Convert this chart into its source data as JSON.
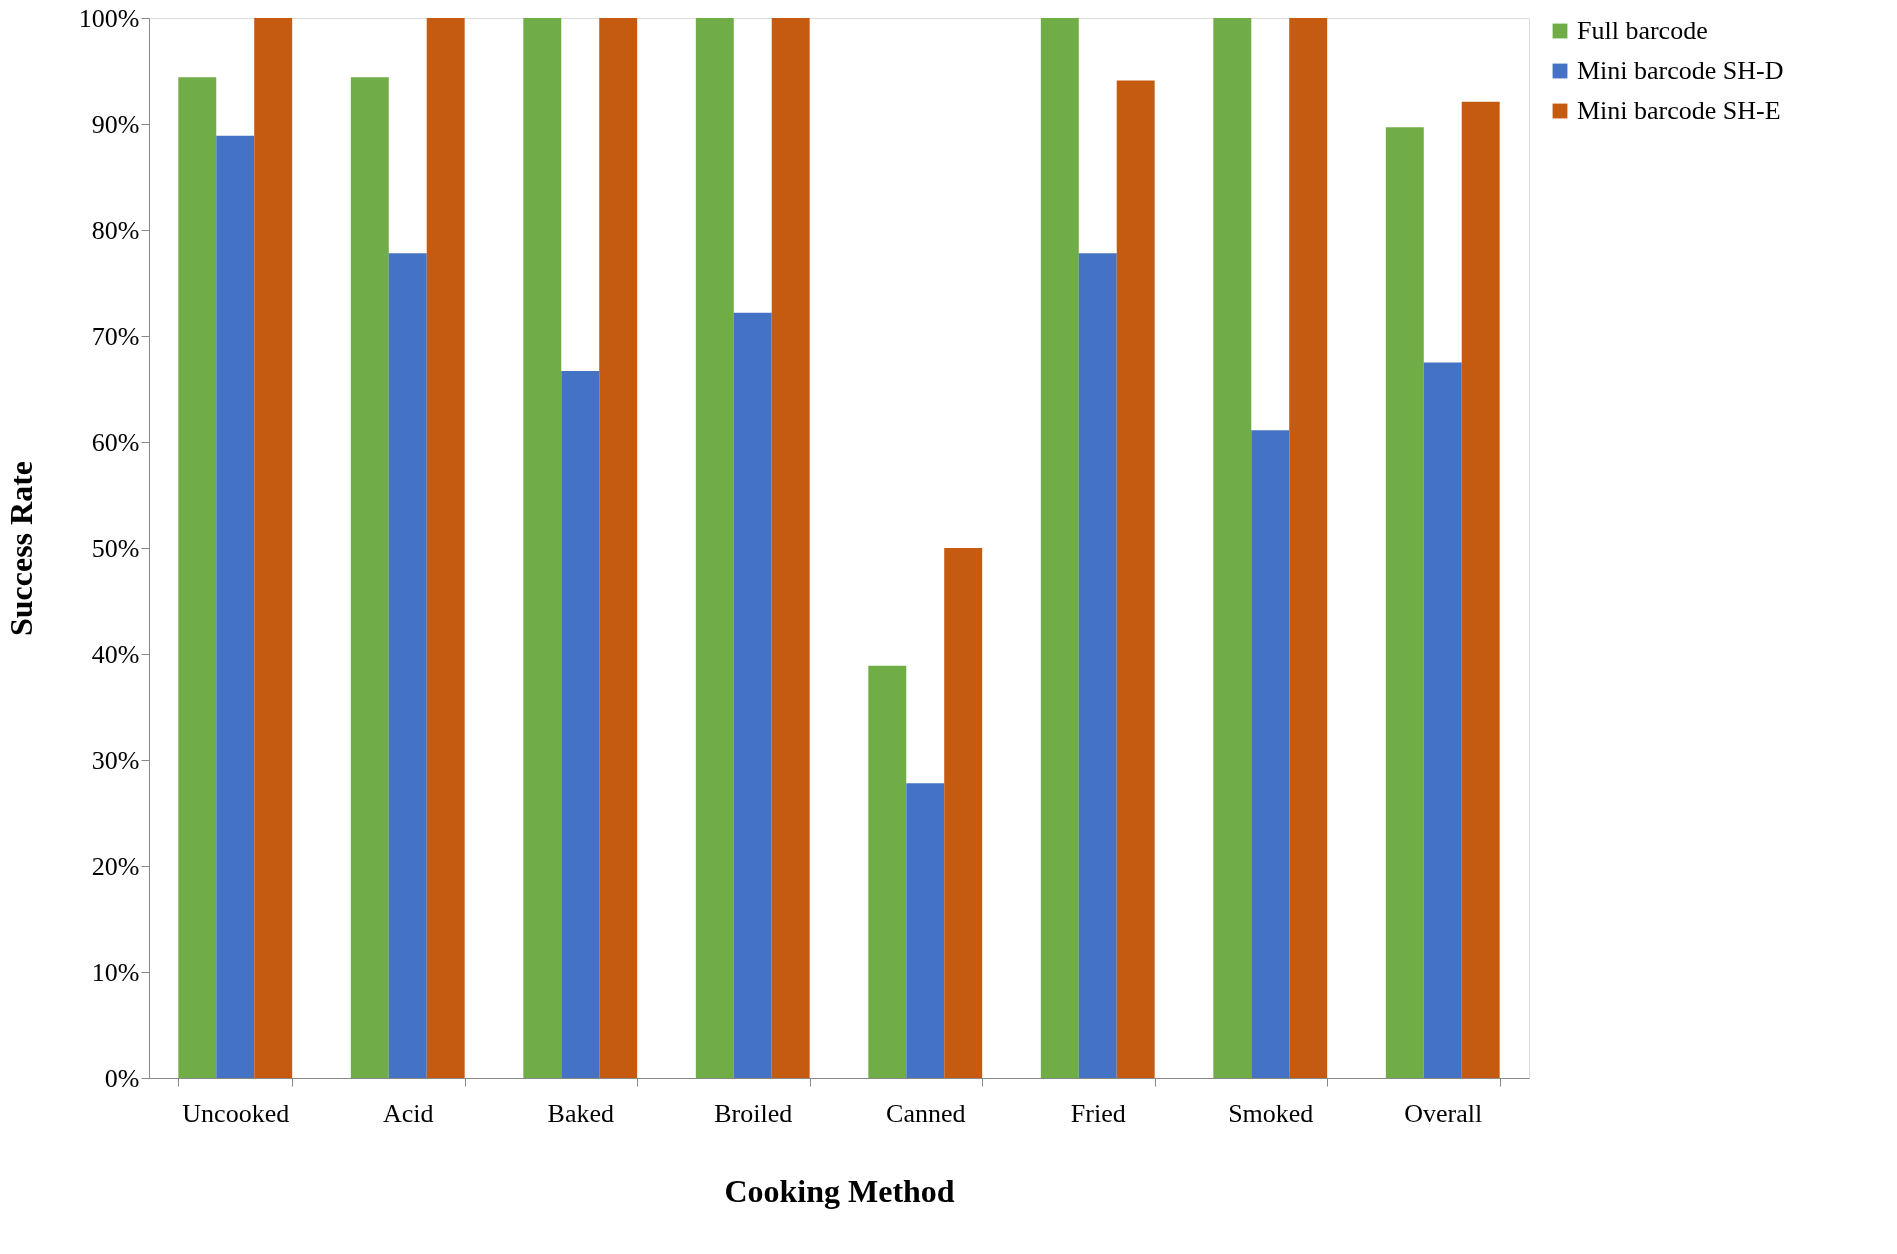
{
  "chart_data": {
    "type": "bar",
    "xlabel": "Cooking Method",
    "ylabel": "Success Rate",
    "categories": [
      "Uncooked",
      "Acid",
      "Baked",
      "Broiled",
      "Canned",
      "Fried",
      "Smoked",
      "Overall"
    ],
    "series": [
      {
        "name": "Full barcode",
        "color": "#70ad47",
        "values": [
          94.4,
          94.4,
          100,
          100,
          38.9,
          100,
          100,
          89.7
        ]
      },
      {
        "name": "Mini barcode SH-D",
        "color": "#4472c4",
        "values": [
          88.9,
          77.8,
          66.7,
          72.2,
          27.8,
          77.8,
          61.1,
          67.5
        ]
      },
      {
        "name": "Mini barcode SH-E",
        "color": "#c55a11",
        "values": [
          100,
          100,
          100,
          100,
          50,
          94.1,
          100,
          92.1
        ]
      }
    ],
    "ylim": [
      0,
      100
    ],
    "yticks": [
      {
        "value": 0,
        "label": "0%"
      },
      {
        "value": 10,
        "label": "10%"
      },
      {
        "value": 20,
        "label": "20%"
      },
      {
        "value": 30,
        "label": "30%"
      },
      {
        "value": 40,
        "label": "40%"
      },
      {
        "value": 50,
        "label": "50%"
      },
      {
        "value": 60,
        "label": "60%"
      },
      {
        "value": 70,
        "label": "70%"
      },
      {
        "value": 80,
        "label": "80%"
      },
      {
        "value": 90,
        "label": "90%"
      },
      {
        "value": 100,
        "label": "100%"
      }
    ],
    "grid": false,
    "legend": "right"
  }
}
